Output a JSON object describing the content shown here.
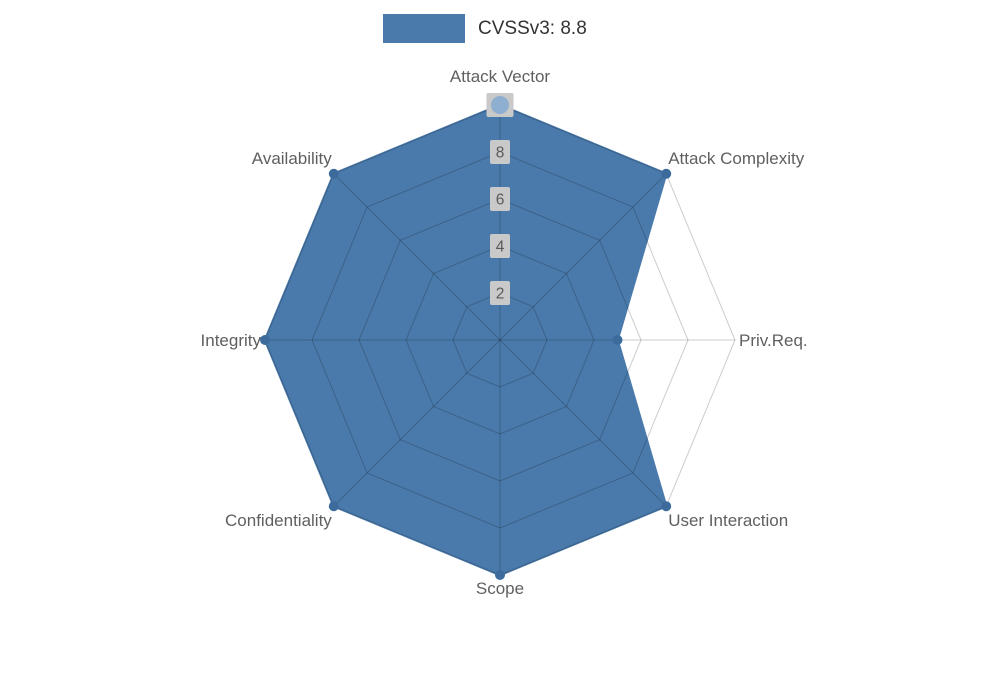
{
  "legend": {
    "label": "CVSSv3: 8.8"
  },
  "chart_data": {
    "type": "radar",
    "title": "CVSSv3: 8.8",
    "categories": [
      "Attack Vector",
      "Attack Complexity",
      "Priv.Req.",
      "User Interaction",
      "Scope",
      "Confidentiality",
      "Integrity",
      "Availability"
    ],
    "series": [
      {
        "name": "CVSSv3: 8.8",
        "values": [
          10,
          10,
          5,
          10,
          10,
          10,
          10,
          10
        ]
      }
    ],
    "radial_ticks": [
      2,
      4,
      6,
      8,
      10
    ],
    "rmax": 10,
    "grid": true,
    "legend_position": "top-center",
    "colors": {
      "fill": "#4a7aab",
      "stroke": "#4a7aab",
      "marker": "#3d6c9c",
      "marker_highlight": "#8fafd0",
      "grid_line": "rgba(0,0,0,0.2)",
      "tick_box": "#c9c9c9",
      "tick_text": "#595959",
      "axis_label": "#5f5f5f",
      "legend_text": "#333333"
    }
  }
}
